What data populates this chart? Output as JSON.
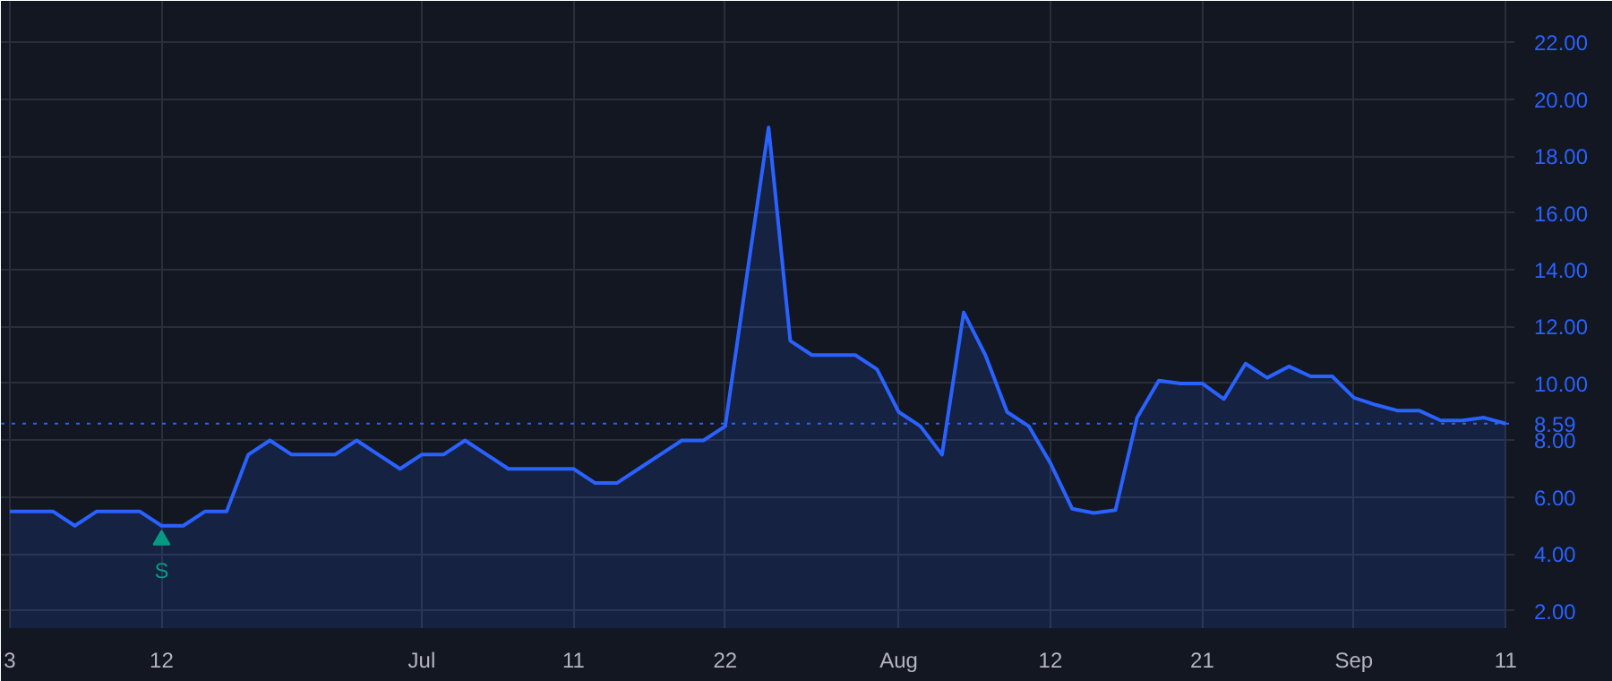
{
  "chart_data": {
    "type": "area",
    "categories": [
      "3",
      null,
      null,
      null,
      null,
      null,
      null,
      "12",
      null,
      null,
      null,
      null,
      null,
      null,
      null,
      null,
      null,
      null,
      null,
      "Jul",
      null,
      null,
      null,
      null,
      null,
      null,
      "11",
      null,
      null,
      null,
      null,
      null,
      null,
      "22",
      null,
      null,
      null,
      null,
      null,
      null,
      null,
      "Aug",
      null,
      null,
      null,
      null,
      null,
      null,
      "12",
      null,
      null,
      null,
      null,
      null,
      null,
      "21",
      null,
      null,
      null,
      null,
      null,
      null,
      "Sep",
      null,
      null,
      null,
      null,
      null,
      null,
      "11"
    ],
    "series": [
      {
        "color": "#2962ff",
        "values": [
          5.5,
          5.5,
          5.5,
          5.0,
          5.5,
          5.5,
          5.5,
          5.0,
          5.0,
          5.5,
          5.5,
          7.5,
          8.0,
          7.5,
          7.5,
          7.5,
          8.0,
          7.5,
          7.0,
          7.5,
          7.5,
          8.0,
          7.5,
          7.0,
          7.0,
          7.0,
          7.0,
          6.5,
          6.5,
          7.0,
          7.5,
          8.0,
          8.0,
          8.5,
          13.8,
          19.0,
          11.5,
          11.0,
          11.0,
          11.0,
          10.5,
          9.0,
          8.5,
          7.5,
          12.5,
          11.0,
          9.0,
          8.5,
          7.2,
          5.6,
          5.45,
          5.55,
          8.8,
          10.1,
          10.0,
          10.0,
          9.45,
          10.7,
          10.2,
          10.6,
          10.25,
          10.25,
          9.5,
          9.25,
          9.05,
          9.05,
          8.7,
          8.7,
          8.8,
          8.59
        ]
      }
    ],
    "ylim": [
      1.4,
      23.45
    ],
    "yticks": [
      {
        "value": 2,
        "label": "2.00"
      },
      {
        "value": 4,
        "label": "4.00"
      },
      {
        "value": 6,
        "label": "6.00"
      },
      {
        "value": 8,
        "label": "8.00"
      },
      {
        "value": 10,
        "label": "10.00"
      },
      {
        "value": 12,
        "label": "12.00"
      },
      {
        "value": 14,
        "label": "14.00"
      },
      {
        "value": 16,
        "label": "16.00"
      },
      {
        "value": 18,
        "label": "18.00"
      },
      {
        "value": 20,
        "label": "20.00"
      },
      {
        "value": 22,
        "label": "22.00"
      }
    ],
    "ref_lines": [
      {
        "axis": "y",
        "value": 8.59,
        "label": "8.59",
        "color": "#2962ff",
        "line_style": "dotted"
      }
    ],
    "annotations": [
      {
        "text": "S",
        "x": "12",
        "y": 4.5
      }
    ],
    "grid": true,
    "marker": "none",
    "line_style": "solid"
  }
}
